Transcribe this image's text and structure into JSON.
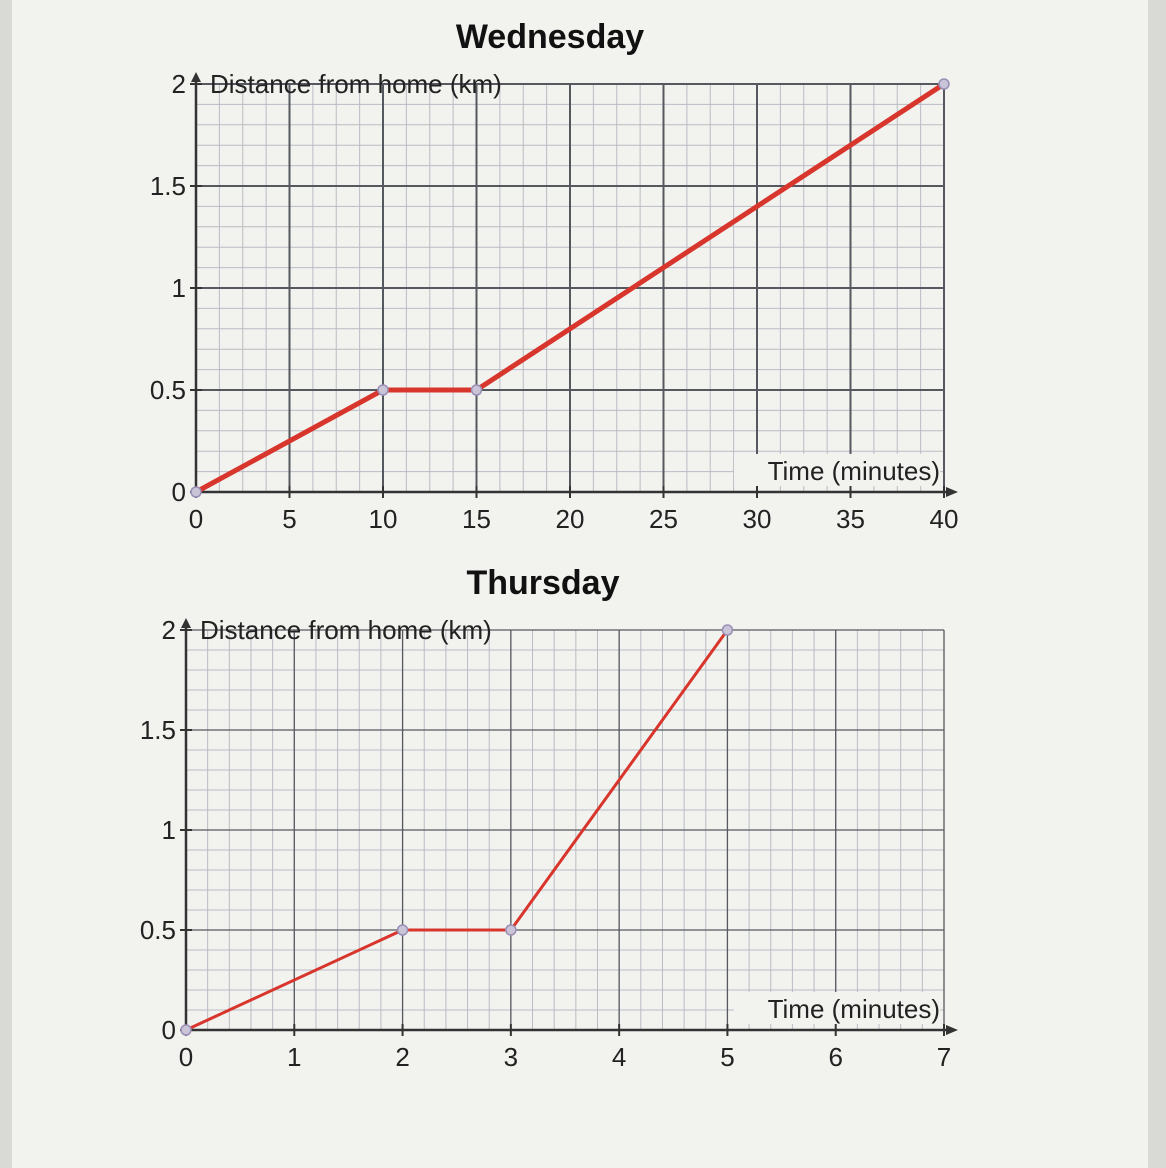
{
  "chart_data": [
    {
      "type": "line",
      "title": "Wednesday",
      "xlabel": "Time (minutes)",
      "ylabel": "Distance from home (km)",
      "xlim": [
        0,
        40
      ],
      "ylim": [
        0,
        2
      ],
      "x_ticks": [
        0,
        5,
        10,
        15,
        20,
        25,
        30,
        35,
        40
      ],
      "y_ticks": [
        0,
        0.5,
        1,
        1.5,
        2
      ],
      "x_tick_labels": [
        "0",
        "5",
        "10",
        "15",
        "20",
        "25",
        "30",
        "35",
        "40"
      ],
      "y_tick_labels": [
        "0",
        "0.5",
        "1",
        "1.5",
        "2"
      ],
      "grid": true,
      "series": [
        {
          "x": [
            0,
            10,
            15,
            40
          ],
          "y": [
            0,
            0.5,
            0.5,
            2
          ]
        }
      ],
      "line_color": "#d8352c"
    },
    {
      "type": "line",
      "title": "Thursday",
      "xlabel": "Time (minutes)",
      "ylabel": "Distance from home (km)",
      "xlim": [
        0,
        7
      ],
      "ylim": [
        0,
        2
      ],
      "x_ticks": [
        0,
        1,
        2,
        3,
        4,
        5,
        6,
        7
      ],
      "y_ticks": [
        0,
        0.5,
        1,
        1.5,
        2
      ],
      "x_tick_labels": [
        "0",
        "1",
        "2",
        "3",
        "4",
        "5",
        "6",
        "7"
      ],
      "y_tick_labels": [
        "0",
        "0.5",
        "1",
        "1.5",
        "2"
      ],
      "grid": true,
      "series": [
        {
          "x": [
            0,
            2,
            3,
            5
          ],
          "y": [
            0,
            0.5,
            0.5,
            2
          ]
        }
      ],
      "line_color": "#d8352c"
    }
  ]
}
